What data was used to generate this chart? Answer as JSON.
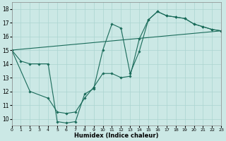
{
  "xlabel": "Humidex (Indice chaleur)",
  "background_color": "#cbe8e5",
  "grid_color": "#aad4d0",
  "line_color": "#1a6b5a",
  "xlim": [
    0,
    23
  ],
  "ylim": [
    9.5,
    18.5
  ],
  "xticks": [
    0,
    1,
    2,
    3,
    4,
    5,
    6,
    7,
    8,
    9,
    10,
    11,
    12,
    13,
    14,
    15,
    16,
    17,
    18,
    19,
    20,
    21,
    22,
    23
  ],
  "yticks": [
    10,
    11,
    12,
    13,
    14,
    15,
    16,
    17,
    18
  ],
  "line1_x": [
    0,
    1,
    2,
    3,
    4,
    5,
    6,
    7,
    8,
    9,
    10,
    11,
    12,
    13,
    14,
    15,
    16,
    17,
    18,
    19,
    20,
    21,
    22,
    23
  ],
  "line1_y": [
    15.0,
    14.2,
    14.0,
    14.0,
    14.0,
    9.8,
    9.7,
    9.8,
    11.8,
    12.2,
    15.0,
    16.9,
    16.6,
    13.3,
    14.9,
    17.2,
    17.8,
    17.5,
    17.4,
    17.3,
    16.9,
    16.7,
    16.5,
    16.4
  ],
  "line2_x": [
    0,
    2,
    4,
    5,
    6,
    7,
    8,
    9,
    10,
    11,
    12,
    13,
    14,
    15,
    16,
    17,
    18,
    19,
    20,
    21,
    22,
    23
  ],
  "line2_y": [
    15.0,
    12.0,
    11.5,
    10.5,
    10.4,
    10.5,
    11.5,
    12.3,
    13.3,
    13.3,
    13.0,
    13.1,
    15.8,
    17.2,
    17.8,
    17.5,
    17.4,
    17.3,
    16.9,
    16.7,
    16.5,
    16.4
  ],
  "line3_x": [
    0,
    23
  ],
  "line3_y": [
    15.0,
    16.4
  ]
}
